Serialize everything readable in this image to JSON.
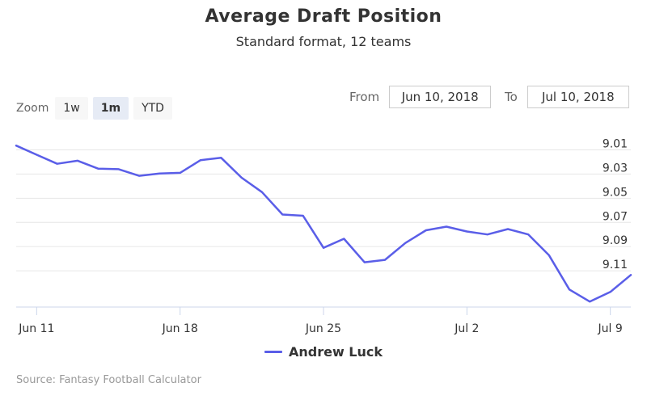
{
  "title": "Average Draft Position",
  "subtitle": "Standard format, 12 teams",
  "zoom": {
    "label": "Zoom",
    "buttons": [
      {
        "label": "1w",
        "active": false
      },
      {
        "label": "1m",
        "active": true
      },
      {
        "label": "YTD",
        "active": false
      }
    ]
  },
  "range": {
    "from_label": "From",
    "from_value": "Jun 10, 2018",
    "to_label": "To",
    "to_value": "Jul 10, 2018"
  },
  "legend": {
    "label": "Andrew Luck",
    "color": "#5a5ee8"
  },
  "source": "Source: Fantasy Football Calculator",
  "chart_data": {
    "type": "line",
    "title": "Average Draft Position",
    "subtitle": "Standard format, 12 teams",
    "x": [
      "Jun 10",
      "Jun 11",
      "Jun 12",
      "Jun 13",
      "Jun 14",
      "Jun 15",
      "Jun 16",
      "Jun 17",
      "Jun 18",
      "Jun 19",
      "Jun 20",
      "Jun 21",
      "Jun 22",
      "Jun 23",
      "Jun 24",
      "Jun 25",
      "Jun 26",
      "Jun 27",
      "Jun 28",
      "Jun 29",
      "Jun 30",
      "Jul 1",
      "Jul 2",
      "Jul 3",
      "Jul 4",
      "Jul 5",
      "Jul 6",
      "Jul 7",
      "Jul 8",
      "Jul 9",
      "Jul 10"
    ],
    "series": [
      {
        "name": "Andrew Luck",
        "color": "#5a5ee8",
        "values": [
          9.0065,
          9.014,
          9.0215,
          9.019,
          9.0255,
          9.026,
          9.0315,
          9.0295,
          9.029,
          9.0185,
          9.0165,
          9.033,
          9.045,
          9.0635,
          9.0645,
          9.091,
          9.0835,
          9.103,
          9.101,
          9.087,
          9.0765,
          9.0735,
          9.0775,
          9.08,
          9.0755,
          9.08,
          9.097,
          9.1255,
          9.1355,
          9.1275,
          9.1135
        ]
      }
    ],
    "x_ticks": [
      "Jun 11",
      "Jun 18",
      "Jun 25",
      "Jul 2",
      "Jul 9"
    ],
    "y_ticks": [
      9.01,
      9.03,
      9.05,
      9.07,
      9.09,
      9.11
    ],
    "y_tick_labels": [
      "9.01",
      "9.03",
      "9.05",
      "9.07",
      "9.09",
      "9.11"
    ],
    "ylim": [
      9.003,
      9.14
    ],
    "y_reversed": true,
    "grid": true,
    "legend_position": "bottom-center"
  }
}
